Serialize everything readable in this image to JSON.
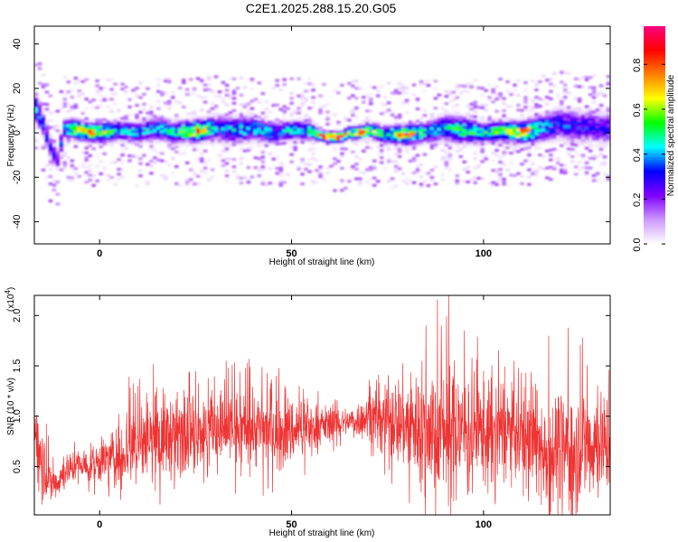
{
  "figure": {
    "title": "C2E1.2025.288.15.20.G05"
  },
  "chart_data": [
    {
      "type": "heatmap",
      "xlabel": "Height of straight line (km)",
      "ylabel": "Frequency (Hz)",
      "xlim": [
        -17,
        133
      ],
      "ylim": [
        -50,
        48
      ],
      "xticks": [
        0,
        50,
        100
      ],
      "yticks": [
        -40,
        -20,
        0,
        20,
        40
      ],
      "grid": false,
      "colorbar": {
        "label": "Normalized spectral amplitude",
        "range": [
          0,
          0.97
        ],
        "ticks": [
          "0.0",
          "0.2",
          "0.4",
          "0.6",
          "0.8"
        ],
        "tick_values": [
          0,
          0.2,
          0.4,
          0.6,
          0.8
        ],
        "colors": [
          "#ffffff",
          "#cc99ff",
          "#8000ff",
          "#0000ff",
          "#00ffff",
          "#00ff00",
          "#ffff00",
          "#ff8000",
          "#ff0000",
          "#ff0080"
        ]
      },
      "ridge": {
        "x": [
          -17,
          -15,
          -13,
          -11,
          -9,
          -5,
          0,
          5,
          10,
          15,
          20,
          25,
          30,
          35,
          40,
          45,
          50,
          55,
          57,
          60,
          63,
          65,
          68,
          70,
          75,
          80,
          85,
          90,
          95,
          100,
          105,
          110,
          115,
          120,
          125,
          133
        ],
        "center_hz": [
          12,
          6,
          -6,
          -12,
          2,
          1,
          0,
          1,
          0,
          2,
          0,
          1,
          2,
          1,
          2,
          0,
          1,
          1,
          -1,
          -2,
          -2,
          0,
          0,
          1,
          -1,
          -1,
          0,
          2,
          1,
          0,
          1,
          0,
          2,
          4,
          3,
          2
        ],
        "peak_amplitude": [
          0.45,
          0.35,
          0.3,
          0.3,
          0.4,
          0.85,
          0.8,
          0.45,
          0.4,
          0.45,
          0.5,
          0.85,
          0.4,
          0.45,
          0.5,
          0.45,
          0.45,
          0.55,
          0.9,
          0.95,
          0.9,
          0.6,
          0.88,
          0.6,
          0.55,
          0.85,
          0.45,
          0.45,
          0.55,
          0.5,
          0.6,
          0.85,
          0.45,
          0.35,
          0.35,
          0.3
        ],
        "half_width_hz": [
          6,
          5,
          5,
          4,
          4,
          3.5,
          3.5,
          4,
          4,
          4.5,
          4,
          4,
          5,
          5,
          4.5,
          4,
          4,
          3.5,
          2,
          2,
          2,
          2.5,
          2.5,
          3,
          3.5,
          3.5,
          4,
          5,
          5,
          4,
          4,
          4,
          5,
          6,
          6,
          6
        ]
      }
    },
    {
      "type": "line",
      "xlabel": "Height of straight line (km)",
      "ylabel": "SNR (10 * v/v)",
      "y_multiplier": "(x10",
      "y_multiplier_exponent": "4",
      "y_multiplier_close": ")",
      "xlim": [
        -17,
        133
      ],
      "ylim": [
        0.02,
        2.2
      ],
      "xticks": [
        0,
        50,
        100
      ],
      "yticks": [
        "0.5",
        "1.0",
        "1.5",
        "2.0"
      ],
      "ytick_values": [
        0.5,
        1.0,
        1.5,
        2.0
      ],
      "grid": false,
      "series": [
        {
          "color": "#ee3333",
          "envelope_x": [
            -17,
            -15,
            -13,
            -11,
            -9,
            -7,
            -5,
            -3,
            0,
            3,
            5,
            7,
            10,
            15,
            20,
            25,
            30,
            35,
            40,
            45,
            50,
            55,
            60,
            65,
            70,
            75,
            80,
            85,
            90,
            95,
            100,
            105,
            110,
            115,
            120,
            125,
            130,
            133
          ],
          "mean": [
            0.9,
            0.6,
            0.32,
            0.35,
            0.45,
            0.5,
            0.52,
            0.5,
            0.55,
            0.6,
            0.58,
            0.7,
            0.72,
            0.78,
            0.82,
            0.85,
            0.88,
            0.85,
            0.88,
            0.85,
            0.85,
            0.9,
            0.92,
            0.95,
            0.98,
            1.0,
            0.92,
            0.9,
            0.88,
            0.85,
            0.85,
            0.85,
            0.8,
            0.68,
            0.65,
            0.7,
            0.75,
            0.72
          ],
          "spread": [
            0.12,
            0.35,
            0.2,
            0.15,
            0.15,
            0.15,
            0.15,
            0.15,
            0.2,
            0.2,
            0.3,
            0.35,
            0.35,
            0.4,
            0.35,
            0.3,
            0.35,
            0.35,
            0.35,
            0.35,
            0.3,
            0.22,
            0.15,
            0.12,
            0.2,
            0.35,
            0.45,
            0.55,
            0.6,
            0.55,
            0.45,
            0.45,
            0.4,
            0.45,
            0.55,
            0.55,
            0.5,
            0.45
          ],
          "peak_x": [
            5,
            10,
            14,
            25,
            33,
            38,
            46,
            52,
            84,
            85,
            88,
            89,
            91,
            95,
            97,
            100,
            108,
            117,
            122
          ],
          "peak_y": [
            1.02,
            1.3,
            1.52,
            1.45,
            1.55,
            1.48,
            1.4,
            1.3,
            1.55,
            1.9,
            2.16,
            1.9,
            2.2,
            1.85,
            1.58,
            1.45,
            1.55,
            1.8,
            1.88
          ]
        }
      ]
    }
  ]
}
